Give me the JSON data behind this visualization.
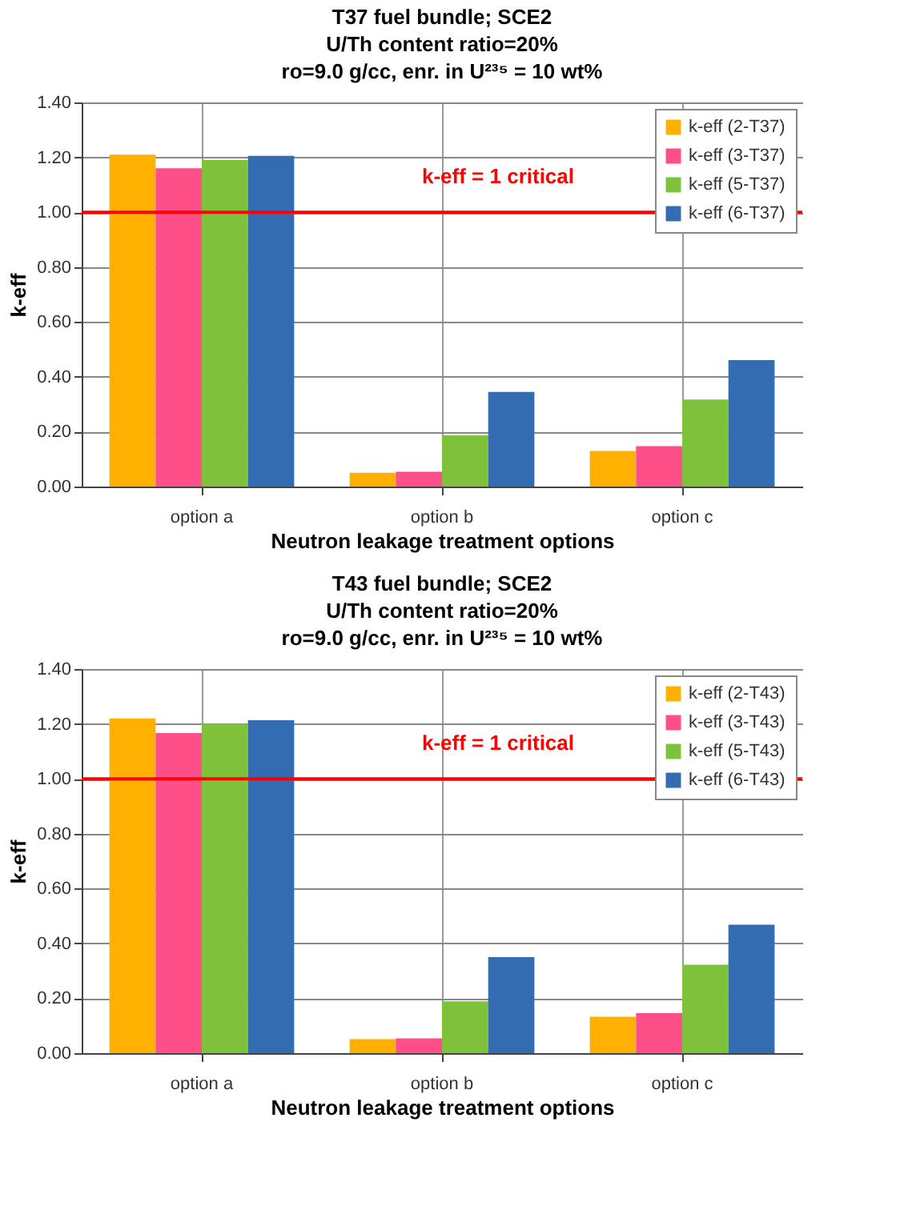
{
  "chart_data": [
    {
      "type": "bar",
      "title": "T37 fuel bundle; SCE2\nU/Th content ratio=20%\nro=9.0 g/cc, enr. in U²³⁵ = 10 wt%",
      "xlabel": "Neutron leakage treatment options",
      "ylabel": "k-eff",
      "categories": [
        "option a",
        "option b",
        "option c"
      ],
      "series": [
        {
          "name": "k-eff (2-T37)",
          "color": "#ffb000",
          "values": [
            1.21,
            0.05,
            0.13
          ]
        },
        {
          "name": "k-eff (3-T37)",
          "color": "#ff4f88",
          "values": [
            1.16,
            0.054,
            0.147
          ]
        },
        {
          "name": "k-eff (5-T37)",
          "color": "#7dc23a",
          "values": [
            1.19,
            0.187,
            0.317
          ]
        },
        {
          "name": "k-eff (6-T37)",
          "color": "#336cb0",
          "values": [
            1.205,
            0.345,
            0.461
          ]
        }
      ],
      "ylim": [
        0,
        1.4
      ],
      "yticks": [
        {
          "value": 0,
          "label": "0.00"
        },
        {
          "value": 0.2,
          "label": "0.20"
        },
        {
          "value": 0.4,
          "label": "0.40"
        },
        {
          "value": 0.6,
          "label": "0.60"
        },
        {
          "value": 0.8,
          "label": "0.80"
        },
        {
          "value": 1,
          "label": "1.00"
        },
        {
          "value": 1.2,
          "label": "1.20"
        },
        {
          "value": 1.4,
          "label": "1.40"
        }
      ],
      "ref_lines": [
        {
          "axis": "y",
          "value": 1,
          "label": "k-eff = 1  critical",
          "color": "#ff0000"
        }
      ],
      "grid": true,
      "legend": "top right"
    },
    {
      "type": "bar",
      "title": "T43 fuel bundle; SCE2\nU/Th content ratio=20%\nro=9.0 g/cc, enr. in U²³⁵ = 10 wt%",
      "xlabel": "Neutron leakage treatment options",
      "ylabel": "k-eff",
      "categories": [
        "option a",
        "option b",
        "option c"
      ],
      "series": [
        {
          "name": "k-eff (2-T43)",
          "color": "#ffb000",
          "values": [
            1.22,
            0.051,
            0.133
          ]
        },
        {
          "name": "k-eff (3-T43)",
          "color": "#ff4f88",
          "values": [
            1.167,
            0.054,
            0.146
          ]
        },
        {
          "name": "k-eff (5-T43)",
          "color": "#7dc23a",
          "values": [
            1.2,
            0.189,
            0.322
          ]
        },
        {
          "name": "k-eff (6-T43)",
          "color": "#336cb0",
          "values": [
            1.213,
            0.35,
            0.468
          ]
        }
      ],
      "ylim": [
        0,
        1.4
      ],
      "yticks": [
        {
          "value": 0,
          "label": "0.00"
        },
        {
          "value": 0.2,
          "label": "0.20"
        },
        {
          "value": 0.4,
          "label": "0.40"
        },
        {
          "value": 0.6,
          "label": "0.60"
        },
        {
          "value": 0.8,
          "label": "0.80"
        },
        {
          "value": 1,
          "label": "1.00"
        },
        {
          "value": 1.2,
          "label": "1.20"
        },
        {
          "value": 1.4,
          "label": "1.40"
        }
      ],
      "ref_lines": [
        {
          "axis": "y",
          "value": 1,
          "label": "k-eff = 1  critical",
          "color": "#ff0000"
        }
      ],
      "grid": true,
      "legend": "top right"
    }
  ]
}
